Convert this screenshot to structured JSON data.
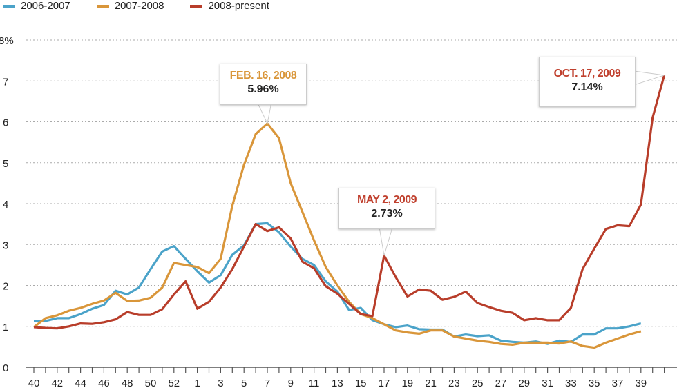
{
  "chart_data": {
    "type": "line",
    "title": "",
    "xlabel": "",
    "ylabel": "",
    "ylim": [
      0,
      8
    ],
    "yticks": [
      "0",
      "1",
      "2",
      "3",
      "4",
      "5",
      "6",
      "7",
      "8%"
    ],
    "weeks": [
      "40",
      "41",
      "42",
      "43",
      "44",
      "45",
      "46",
      "47",
      "48",
      "49",
      "50",
      "51",
      "52",
      "53",
      "1",
      "2",
      "3",
      "4",
      "5",
      "6",
      "7",
      "8",
      "9",
      "10",
      "11",
      "12",
      "13",
      "14",
      "15",
      "16",
      "17",
      "18",
      "19",
      "20",
      "21",
      "22",
      "23",
      "24",
      "25",
      "26",
      "27",
      "28",
      "29",
      "30",
      "31",
      "32",
      "33",
      "34",
      "35",
      "36",
      "37",
      "38",
      "39",
      "40",
      "41"
    ],
    "xtick_labels": [
      "40",
      "42",
      "44",
      "46",
      "48",
      "50",
      "52",
      "1",
      "3",
      "5",
      "7",
      "9",
      "11",
      "13",
      "15",
      "17",
      "19",
      "21",
      "23",
      "25",
      "27",
      "29",
      "31",
      "33",
      "35",
      "37",
      "39"
    ],
    "grid": true,
    "legend_position": "top-left",
    "series": [
      {
        "name": "2006-2007",
        "color": "#4ba3c9",
        "values": [
          1.13,
          1.13,
          1.2,
          1.2,
          1.3,
          1.43,
          1.52,
          1.87,
          1.78,
          1.95,
          2.4,
          2.83,
          2.96,
          2.65,
          2.35,
          2.07,
          2.25,
          2.75,
          2.98,
          3.5,
          3.52,
          3.3,
          2.95,
          2.65,
          2.5,
          2.1,
          1.85,
          1.4,
          1.45,
          1.15,
          1.05,
          0.98,
          1.02,
          0.93,
          0.92,
          0.92,
          0.75,
          0.8,
          0.76,
          0.78,
          0.65,
          0.62,
          0.6,
          0.63,
          0.57,
          0.65,
          0.62,
          0.8,
          0.8,
          0.95,
          0.95,
          1.0,
          1.07
        ]
      },
      {
        "name": "2007-2008",
        "color": "#d9963a",
        "values": [
          0.98,
          1.2,
          1.27,
          1.38,
          1.45,
          1.55,
          1.63,
          1.82,
          1.62,
          1.63,
          1.7,
          1.95,
          2.55,
          2.5,
          2.45,
          2.3,
          2.65,
          3.95,
          4.95,
          5.7,
          5.96,
          5.6,
          4.5,
          3.8,
          3.1,
          2.45,
          2.0,
          1.6,
          1.3,
          1.2,
          1.05,
          0.9,
          0.85,
          0.82,
          0.9,
          0.9,
          0.75,
          0.7,
          0.65,
          0.62,
          0.57,
          0.55,
          0.6,
          0.6,
          0.6,
          0.58,
          0.63,
          0.52,
          0.48,
          0.6,
          0.7,
          0.8,
          0.88
        ]
      },
      {
        "name": "2008-present",
        "color": "#b83d2a",
        "values": [
          0.98,
          0.96,
          0.95,
          1.0,
          1.07,
          1.06,
          1.1,
          1.17,
          1.35,
          1.28,
          1.28,
          1.42,
          1.78,
          2.1,
          1.43,
          1.6,
          1.95,
          2.4,
          2.95,
          3.5,
          3.33,
          3.42,
          3.15,
          2.58,
          2.42,
          1.98,
          1.8,
          1.55,
          1.3,
          1.25,
          2.73,
          2.2,
          1.73,
          1.9,
          1.87,
          1.65,
          1.72,
          1.85,
          1.57,
          1.47,
          1.38,
          1.33,
          1.15,
          1.2,
          1.15,
          1.15,
          1.45,
          2.4,
          2.9,
          3.38,
          3.47,
          3.45,
          3.98,
          6.1,
          7.14
        ]
      }
    ],
    "annotations": [
      {
        "date": "FEB. 16, 2008",
        "value": "5.96%",
        "series": 1,
        "index": 20
      },
      {
        "date": "MAY 2, 2009",
        "value": "2.73%",
        "series": 2,
        "index": 30
      },
      {
        "date": "OCT. 17, 2009",
        "value": "7.14%",
        "series": 2,
        "index": 54
      }
    ]
  }
}
